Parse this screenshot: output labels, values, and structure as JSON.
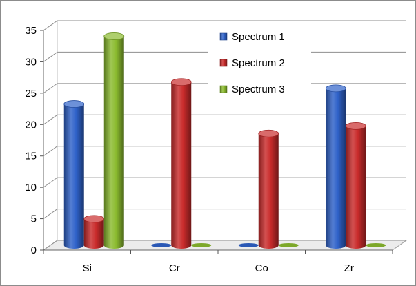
{
  "chart_data": {
    "type": "bar",
    "title": "",
    "xlabel": "",
    "ylabel": "",
    "categories": [
      "Si",
      "Cr",
      "Co",
      "Zr"
    ],
    "series": [
      {
        "name": "Spectrum 1",
        "values": [
          22.5,
          0,
          0,
          25
        ]
      },
      {
        "name": "Spectrum 2",
        "values": [
          4.2,
          26,
          17.8,
          19
        ]
      },
      {
        "name": "Spectrum 3",
        "values": [
          33.3,
          0,
          0,
          0
        ]
      }
    ],
    "ylim": [
      0,
      35
    ],
    "yticks": [
      "0",
      "5",
      "10",
      "15",
      "20",
      "25",
      "30",
      "35"
    ],
    "grid": true,
    "legend_position": "top-right",
    "colors": {
      "Spectrum 1": "#2f62c9",
      "Spectrum 2": "#c92b2b",
      "Spectrum 3": "#8bbb2f"
    }
  }
}
